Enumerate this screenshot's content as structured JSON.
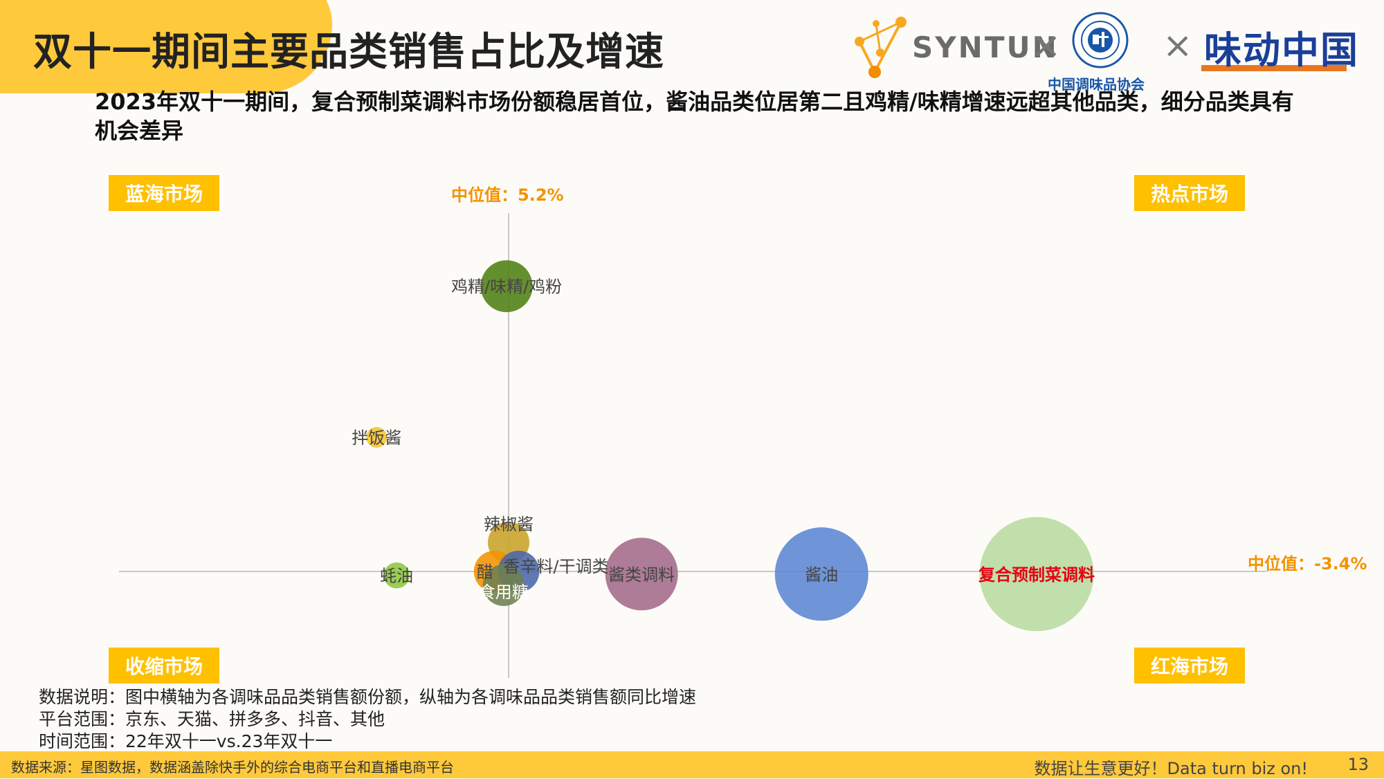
{
  "header": {
    "title": "双十一期间主要品类销售占比及增速",
    "subtitle": "2023年双十一期间，复合预制菜调料市场份额稳居首位，酱油品类位居第二且鸡精/味精增速远超其他品类，细分品类具有机会差异"
  },
  "logos": {
    "syntun": "SYNTUN",
    "times": "×",
    "association_name": "中国调味品协会",
    "weidong": "味动中国"
  },
  "quadrants": {
    "top_left": "蓝海市场",
    "top_right": "热点市场",
    "bottom_left": "收缩市场",
    "bottom_right": "红海市场"
  },
  "medians": {
    "x_label": "中位值：5.2%",
    "y_label": "中位值：-3.4%"
  },
  "chart_data": {
    "type": "scatter",
    "xlabel": "",
    "ylabel": "",
    "series": [
      {
        "name": "鸡精/味精/鸡粉",
        "share": 5.0,
        "growth": 40.0,
        "size": 5,
        "color": "#4E7F12"
      },
      {
        "name": "拌饭酱",
        "share": -8.0,
        "growth": 17.0,
        "size": 2,
        "color": "#F5C530"
      },
      {
        "name": "辣椒酱",
        "share": 5.2,
        "growth": 1.0,
        "size": 4,
        "color": "#C9A227"
      },
      {
        "name": "醋",
        "share": 3.8,
        "growth": -3.4,
        "size": 4,
        "color": "#F39200"
      },
      {
        "name": "香辛料/干调类",
        "share": 6.2,
        "growth": -3.4,
        "size": 4,
        "color": "#4A66A8"
      },
      {
        "name": "食用糖",
        "share": 4.7,
        "growth": -5.5,
        "size": 4,
        "color": "#6E8050"
      },
      {
        "name": "蚝油",
        "share": -6.0,
        "growth": -4.0,
        "size": 2.5,
        "color": "#8DC63F"
      },
      {
        "name": "酱类调料",
        "share": 18.5,
        "growth": -3.8,
        "size": 7,
        "color": "#A36A8A"
      },
      {
        "name": "酱油",
        "share": 36.5,
        "growth": -3.8,
        "size": 9,
        "color": "#5B85D4"
      },
      {
        "name": "复合预制菜调料",
        "share": 58.0,
        "growth": -3.8,
        "size": 11,
        "color": "#B8DBA0"
      }
    ],
    "highlight_label": "复合预制菜调料",
    "highlight_color": "#E60012"
  },
  "notes": {
    "line1": "数据说明：图中横轴为各调味品品类销售额份额，纵轴为各调味品品类销售额同比增速",
    "line2": "平台范围：京东、天猫、拼多多、抖音、其他",
    "line3": "时间范围：22年双十一vs.23年双十一"
  },
  "footer": {
    "source": "数据来源：星图数据，数据涵盖除快手外的综合电商平台和直播电商平台",
    "slogan": "数据让生意更好！Data turn biz on!",
    "page": "13"
  },
  "colors": {
    "accent_yellow": "#FFC93C",
    "tag_yellow": "#FFC000",
    "median_orange": "#F39200"
  }
}
